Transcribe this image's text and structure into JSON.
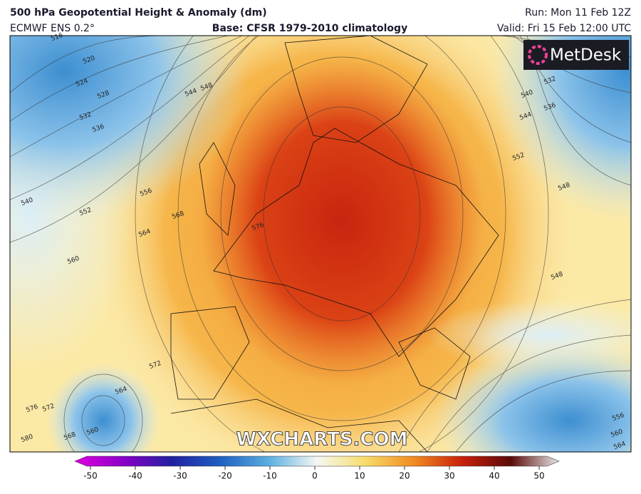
{
  "header": {
    "title": "500 hPa Geopotential Height & Anomaly (dm)",
    "model": "ECMWF ENS 0.2°",
    "base": "Base: CFSR 1979-2010 climatology",
    "run": "Run: Mon 11 Feb 12Z",
    "valid": "Valid: Fri 15 Feb 12:00 UTC"
  },
  "logo": "MetDesk",
  "watermark": "WXCHARTS.COM",
  "contour_labels": [
    516,
    520,
    524,
    528,
    532,
    536,
    540,
    544,
    548,
    552,
    556,
    560,
    564,
    568,
    576,
    572,
    564,
    572,
    576,
    580,
    568,
    560,
    540,
    544,
    532,
    536,
    552,
    548,
    548,
    556,
    560,
    564
  ],
  "colorbar": {
    "ticks": [
      -50,
      -40,
      -30,
      -20,
      -10,
      0,
      10,
      20,
      30,
      40,
      50
    ]
  }
}
